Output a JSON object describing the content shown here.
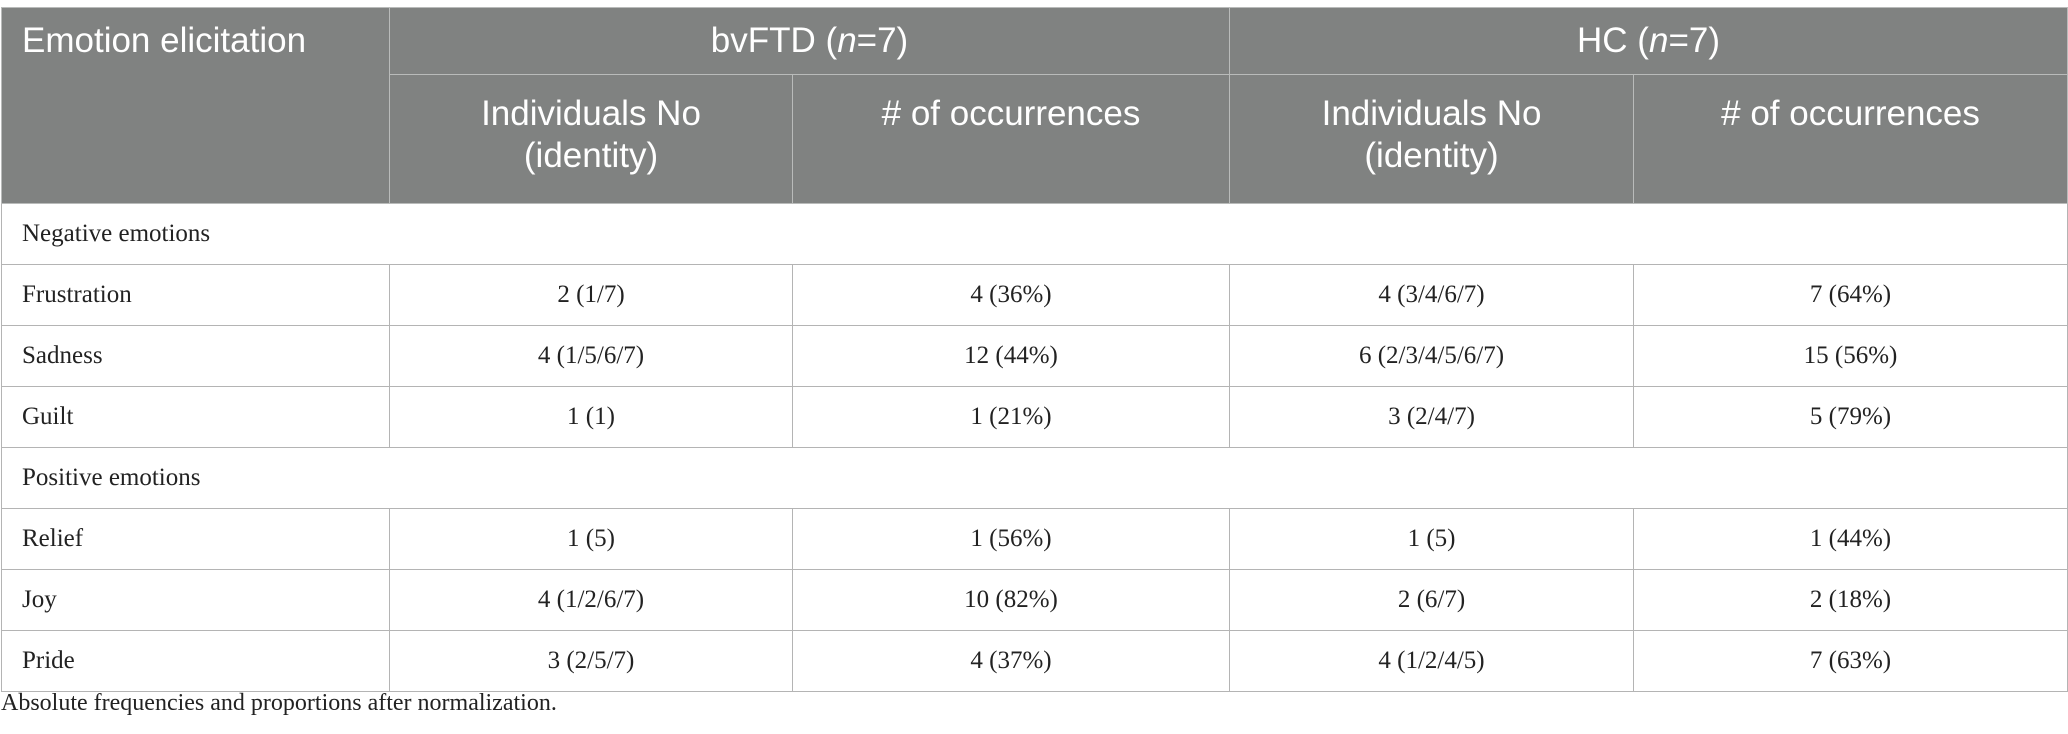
{
  "header": {
    "label": "Emotion elicitation",
    "groups": [
      {
        "name": "bvFTD (",
        "n_italic": "n",
        "n_rest": "=7)"
      },
      {
        "name": "HC (",
        "n_italic": "n",
        "n_rest": "=7)"
      }
    ],
    "subheaders": {
      "individuals_line1": "Individuals No",
      "individuals_line2": "(identity)",
      "occurrences": "# of occurrences"
    }
  },
  "sections": [
    {
      "title": "Negative emotions",
      "rows": [
        {
          "emotion": "Frustration",
          "bv_ind": "2 (1/7)",
          "bv_occ": "4 (36%)",
          "hc_ind": "4 (3/4/6/7)",
          "hc_occ": "7 (64%)"
        },
        {
          "emotion": "Sadness",
          "bv_ind": "4 (1/5/6/7)",
          "bv_occ": "12 (44%)",
          "hc_ind": "6 (2/3/4/5/6/7)",
          "hc_occ": "15 (56%)"
        },
        {
          "emotion": "Guilt",
          "bv_ind": "1 (1)",
          "bv_occ": "1 (21%)",
          "hc_ind": "3 (2/4/7)",
          "hc_occ": "5 (79%)"
        }
      ]
    },
    {
      "title": "Positive emotions",
      "rows": [
        {
          "emotion": "Relief",
          "bv_ind": "1 (5)",
          "bv_occ": "1 (56%)",
          "hc_ind": "1 (5)",
          "hc_occ": "1 (44%)"
        },
        {
          "emotion": "Joy",
          "bv_ind": "4 (1/2/6/7)",
          "bv_occ": "10 (82%)",
          "hc_ind": "2 (6/7)",
          "hc_occ": "2 (18%)"
        },
        {
          "emotion": "Pride",
          "bv_ind": "3 (2/5/7)",
          "bv_occ": "4 (37%)",
          "hc_ind": "4 (1/2/4/5)",
          "hc_occ": "7 (63%)"
        }
      ]
    }
  ],
  "footnote": "Absolute frequencies and proportions after normalization.",
  "colors": {
    "header_bg": "#808281",
    "header_text": "#ffffff",
    "grid": "#b4b4b4"
  }
}
